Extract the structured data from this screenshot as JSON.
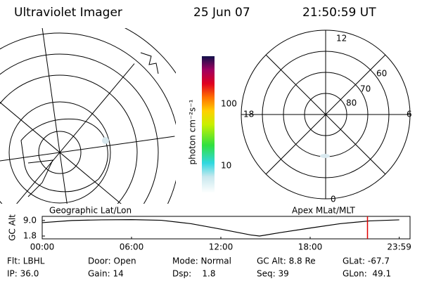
{
  "header": {
    "title": "Ultraviolet Imager",
    "date": "25 Jun 07",
    "time": "21:50:59 UT"
  },
  "left_panel": {
    "label": "Geographic Lat/Lon"
  },
  "right_panel": {
    "label": "Apex MLat/MLT",
    "mlt_labels": [
      "12",
      "6",
      "0",
      "18"
    ],
    "lat_labels": [
      "80",
      "70",
      "60"
    ]
  },
  "colorbar": {
    "label": "photon cm⁻²s⁻¹",
    "ticks": [
      "100",
      "10"
    ]
  },
  "altitude_plot": {
    "label": "GC Alt",
    "x": [
      0,
      2,
      4,
      6,
      8,
      10,
      12,
      14,
      14.6,
      16,
      18,
      20,
      22,
      23.983
    ],
    "values": [
      8.0,
      9.0,
      9.3,
      9.4,
      9.1,
      7.5,
      5.0,
      2.3,
      1.8,
      3.4,
      5.5,
      7.5,
      8.8,
      9.3
    ],
    "xlim": [
      0,
      24
    ],
    "ylim": [
      0.5,
      10.9
    ],
    "xticks": [
      {
        "value": 0,
        "label": "00:00"
      },
      {
        "value": 6,
        "label": "06:00"
      },
      {
        "value": 12,
        "label": "12:00"
      },
      {
        "value": 18,
        "label": "18:00"
      },
      {
        "value": 23.983,
        "label": "23:59"
      }
    ],
    "yticks": [
      {
        "value": 9,
        "label": "9.0"
      },
      {
        "value": 1.8,
        "label": "1.8"
      }
    ],
    "current_time": 21.85,
    "line_color": "#000000",
    "marker_color": "#e00000"
  },
  "footer": {
    "rows": [
      [
        "Flt: LBHL",
        "Door: Open",
        "Mode: Normal",
        "GC Alt: 8.8 Re",
        "GLat: -67.7"
      ],
      [
        "IP: 36.0",
        "Gain: 14",
        "Dsp:    1.8",
        "Seq: 39",
        "GLon:  49.1"
      ]
    ]
  }
}
